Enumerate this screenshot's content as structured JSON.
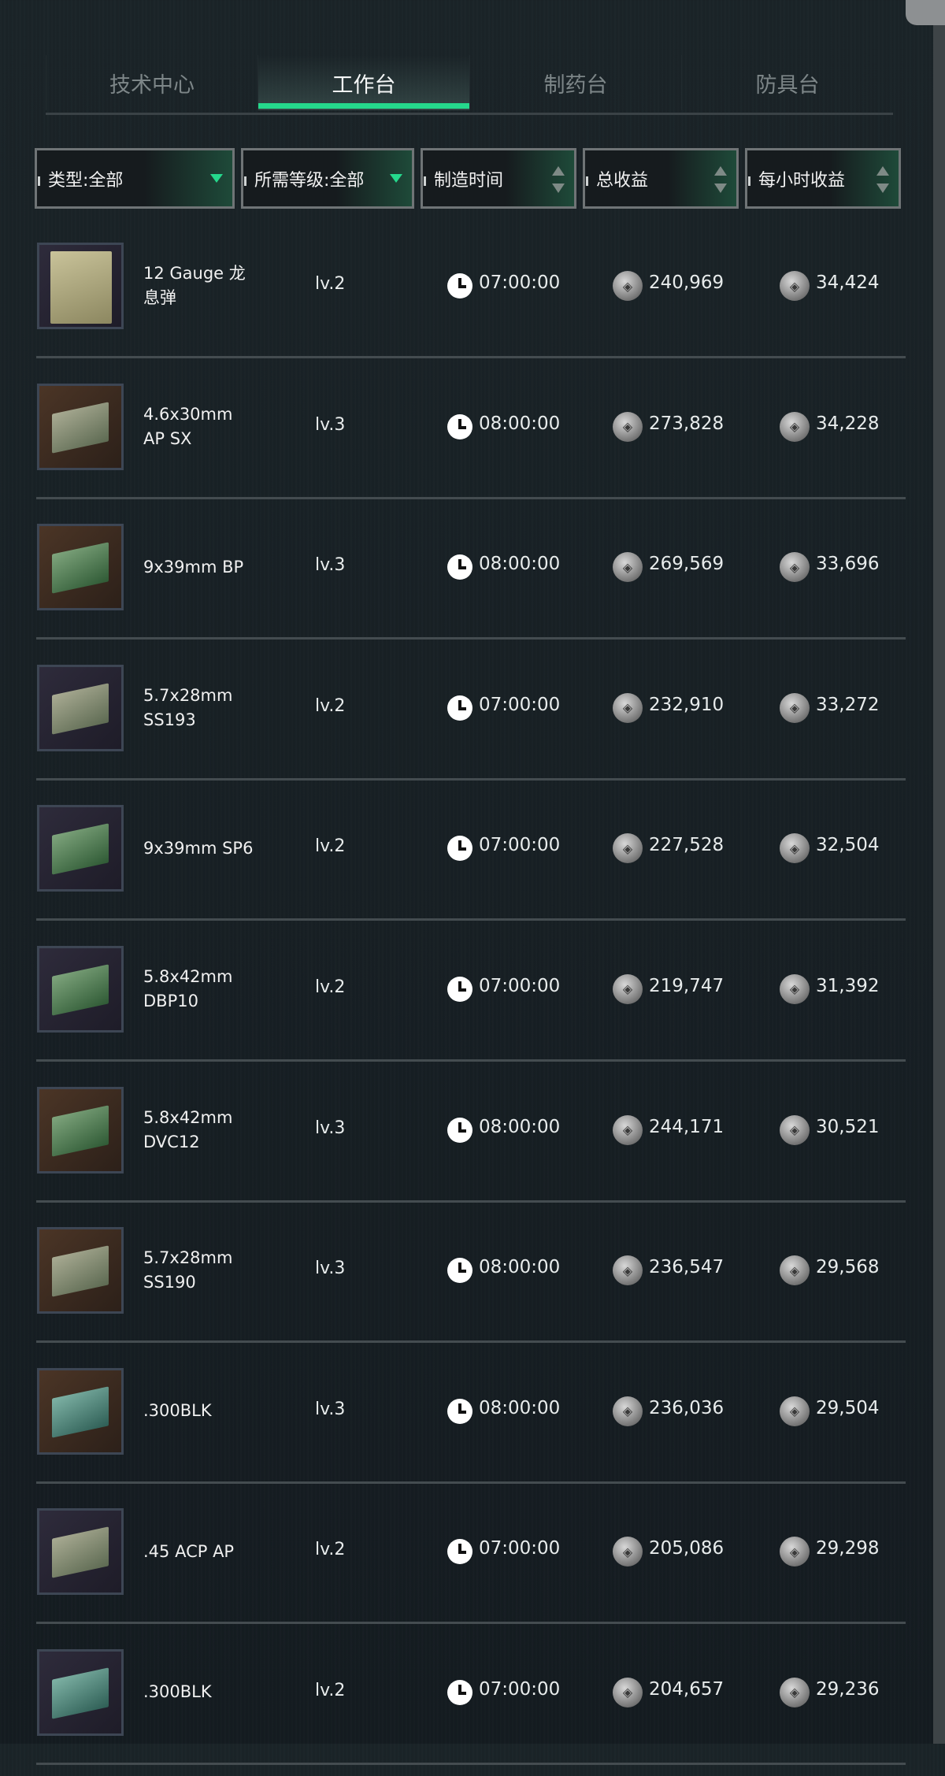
{
  "tabs": [
    {
      "label": "技术中心"
    },
    {
      "label": "工作台",
      "active": true
    },
    {
      "label": "制药台"
    },
    {
      "label": "防具台"
    }
  ],
  "filters": {
    "type": "类型:全部",
    "level": "所需等级:全部",
    "time": "制造时间",
    "total": "总收益",
    "hourly": "每小时收益"
  },
  "colors": {
    "accent": "#25d98c",
    "background": "#161d22"
  },
  "rows": [
    {
      "name": "12 Gauge 龙息弹",
      "level": "lv.2",
      "time": "07:00:00",
      "total": "240,969",
      "hourly": "34,424",
      "icon": "shotgun-shell-box"
    },
    {
      "name": "4.6x30mm AP SX",
      "level": "lv.3",
      "time": "08:00:00",
      "total": "273,828",
      "hourly": "34,228",
      "icon": "ammo-box"
    },
    {
      "name": "9x39mm BP",
      "level": "lv.3",
      "time": "08:00:00",
      "total": "269,569",
      "hourly": "33,696",
      "icon": "ammo-box"
    },
    {
      "name": "5.7x28mm SS193",
      "level": "lv.2",
      "time": "07:00:00",
      "total": "232,910",
      "hourly": "33,272",
      "icon": "ammo-box"
    },
    {
      "name": "9x39mm SP6",
      "level": "lv.2",
      "time": "07:00:00",
      "total": "227,528",
      "hourly": "32,504",
      "icon": "ammo-box"
    },
    {
      "name": "5.8x42mm DBP10",
      "level": "lv.2",
      "time": "07:00:00",
      "total": "219,747",
      "hourly": "31,392",
      "icon": "ammo-box"
    },
    {
      "name": "5.8x42mm DVC12",
      "level": "lv.3",
      "time": "08:00:00",
      "total": "244,171",
      "hourly": "30,521",
      "icon": "ammo-box"
    },
    {
      "name": "5.7x28mm SS190",
      "level": "lv.3",
      "time": "08:00:00",
      "total": "236,547",
      "hourly": "29,568",
      "icon": "ammo-box"
    },
    {
      "name": ".300BLK",
      "level": "lv.3",
      "time": "08:00:00",
      "total": "236,036",
      "hourly": "29,504",
      "icon": "ammo-box"
    },
    {
      "name": ".45 ACP AP",
      "level": "lv.2",
      "time": "07:00:00",
      "total": "205,086",
      "hourly": "29,298",
      "icon": "ammo-box"
    },
    {
      "name": ".300BLK",
      "level": "lv.2",
      "time": "07:00:00",
      "total": "204,657",
      "hourly": "29,236",
      "icon": "ammo-box"
    }
  ]
}
